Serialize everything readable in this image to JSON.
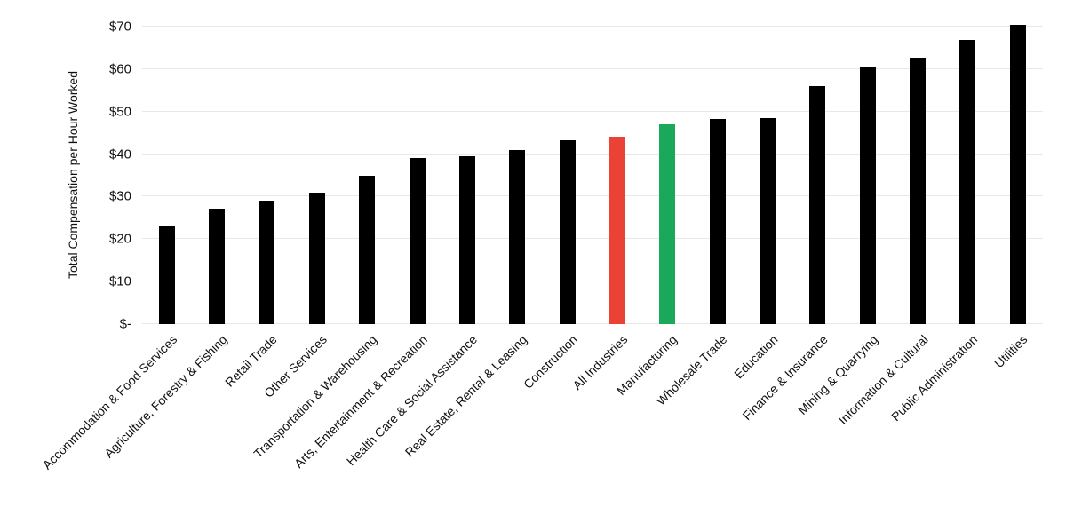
{
  "chart_data": {
    "type": "bar",
    "title": "",
    "ylabel": "Total Compensation per Hour Worked",
    "xlabel": "",
    "categories": [
      "Accommodation & Food Services",
      "Agriculture, Forestry & Fishing",
      "Retail Trade",
      "Other Services",
      "Transportation & Warehousing",
      "Arts, Entertainment & Recreation",
      "Health Care & Social Assistance",
      "Real Estate, Rental & Leasing",
      "Construction",
      "All Industries",
      "Manufacturing",
      "Wholesale Trade",
      "Education",
      "Finance & Insurance",
      "Mining & Quarrying",
      "Information & Cultural",
      "Public Administration",
      "Utilities"
    ],
    "values": [
      23.3,
      27.1,
      29.0,
      31.0,
      34.9,
      39.1,
      39.5,
      41.0,
      43.2,
      44.0,
      47.0,
      48.3,
      48.5,
      56.0,
      60.4,
      62.6,
      66.8,
      70.5
    ],
    "yticks": [
      {
        "value": 0,
        "label": "$-"
      },
      {
        "value": 10,
        "label": "$10"
      },
      {
        "value": 20,
        "label": "$20"
      },
      {
        "value": 30,
        "label": "$30"
      },
      {
        "value": 40,
        "label": "$40"
      },
      {
        "value": 50,
        "label": "$50"
      },
      {
        "value": 60,
        "label": "$60"
      },
      {
        "value": 70,
        "label": "$70"
      }
    ],
    "ylim": [
      0,
      73
    ],
    "grid": true,
    "legend_position": "none",
    "bar_color_default": "#000000",
    "highlights": {
      "All Industries": "#ea4335",
      "Manufacturing": "#1aa85a"
    },
    "gridline_color": "#e8e8e8",
    "text_color": "#111111",
    "background_color": "#ffffff"
  }
}
